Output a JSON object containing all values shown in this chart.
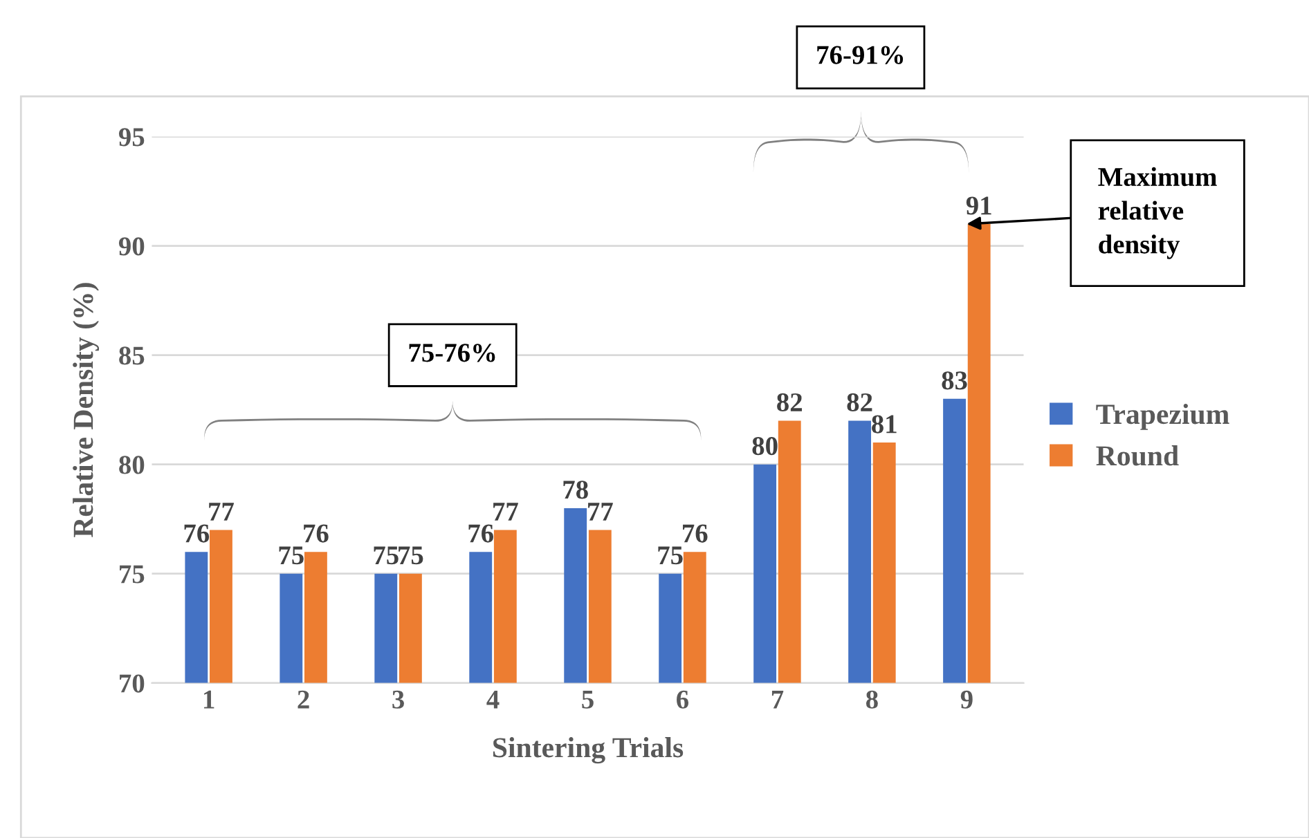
{
  "chart_data": {
    "type": "bar",
    "xlabel": "Sintering Trials",
    "ylabel": "Relative Density (%)",
    "categories": [
      "1",
      "2",
      "3",
      "4",
      "5",
      "6",
      "7",
      "8",
      "9"
    ],
    "series": [
      {
        "name": "Trapezium",
        "color": "#4472c4",
        "values": [
          76,
          75,
          75,
          76,
          78,
          75,
          80,
          82,
          83
        ]
      },
      {
        "name": "Round",
        "color": "#ed7d31",
        "values": [
          77,
          76,
          75,
          77,
          77,
          76,
          82,
          81,
          91
        ]
      }
    ],
    "ylim": [
      70,
      95
    ],
    "yticks": [
      70,
      75,
      80,
      85,
      90,
      95
    ],
    "grid": "y",
    "legend": "right",
    "data_labels": true,
    "annotations": [
      "75-76%",
      "76-91%",
      {
        "text": "Maximum relative density",
        "x": "9",
        "y": 91
      }
    ]
  }
}
